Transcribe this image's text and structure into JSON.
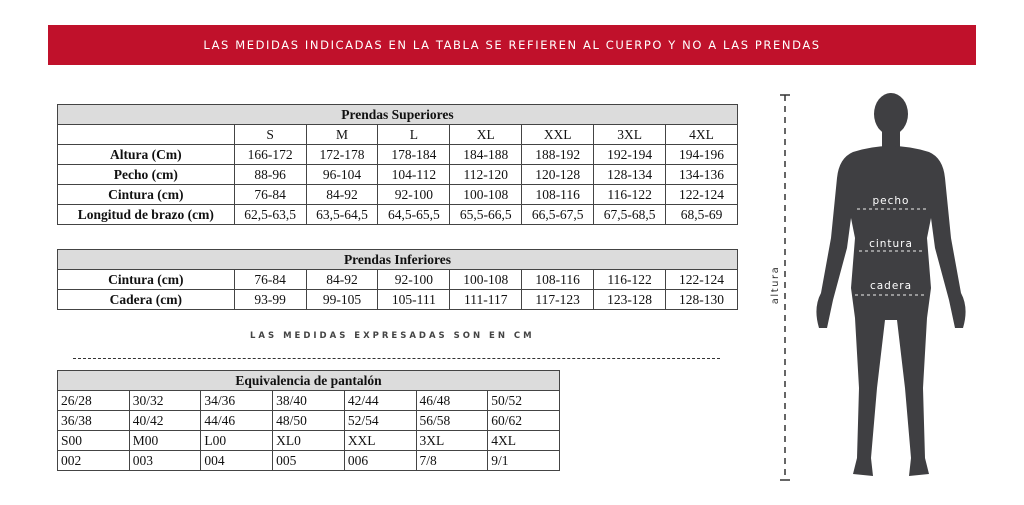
{
  "banner": "LAS MEDIDAS INDICADAS EN LA TABLA SE REFIEREN AL CUERPO Y NO A LAS PRENDAS",
  "superiores": {
    "title": "Prendas Superiores",
    "sizes": [
      "S",
      "M",
      "L",
      "XL",
      "XXL",
      "3XL",
      "4XL"
    ],
    "rows": [
      {
        "label": "Altura (Cm)",
        "values": [
          "166-172",
          "172-178",
          "178-184",
          "184-188",
          "188-192",
          "192-194",
          "194-196"
        ]
      },
      {
        "label": "Pecho (cm)",
        "values": [
          "88-96",
          "96-104",
          "104-112",
          "112-120",
          "120-128",
          "128-134",
          "134-136"
        ]
      },
      {
        "label": "Cintura (cm)",
        "values": [
          "76-84",
          "84-92",
          "92-100",
          "100-108",
          "108-116",
          "116-122",
          "122-124"
        ]
      },
      {
        "label": "Longitud de brazo (cm)",
        "values": [
          "62,5-63,5",
          "63,5-64,5",
          "64,5-65,5",
          "65,5-66,5",
          "66,5-67,5",
          "67,5-68,5",
          "68,5-69"
        ]
      }
    ]
  },
  "inferiores": {
    "title": "Prendas Inferiores",
    "rows": [
      {
        "label": "Cintura (cm)",
        "values": [
          "76-84",
          "84-92",
          "92-100",
          "100-108",
          "108-116",
          "116-122",
          "122-124"
        ]
      },
      {
        "label": "Cadera (cm)",
        "values": [
          "93-99",
          "99-105",
          "105-111",
          "111-117",
          "117-123",
          "123-128",
          "128-130"
        ]
      }
    ]
  },
  "note": "LAS MEDIDAS EXPRESADAS SON EN CM",
  "pantalon": {
    "title": "Equivalencia de pantalón",
    "rows": [
      [
        "26/28",
        "30/32",
        "34/36",
        "38/40",
        "42/44",
        "46/48",
        "50/52"
      ],
      [
        "36/38",
        "40/42",
        "44/46",
        "48/50",
        "52/54",
        "56/58",
        "60/62"
      ],
      [
        "S00",
        "M00",
        "L00",
        "XL0",
        "XXL",
        "3XL",
        "4XL"
      ],
      [
        "002",
        "003",
        "004",
        "005",
        "006",
        "7/8",
        "9/1"
      ]
    ]
  },
  "figure": {
    "altura": "altura",
    "pecho": "pecho",
    "cintura": "cintura",
    "cadera": "cadera"
  },
  "colors": {
    "banner": "#c0112b",
    "figure": "#3f3f42"
  }
}
